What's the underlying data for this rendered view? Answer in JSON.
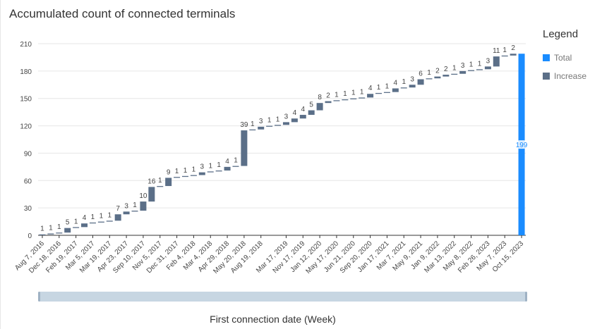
{
  "chart_data": {
    "type": "bar",
    "title": "Accumulated count of connected terminals",
    "xlabel": "First connection date (Week)",
    "ylabel": "",
    "ylim": [
      0,
      210
    ],
    "yticks": [
      0,
      30,
      60,
      90,
      120,
      150,
      180,
      210
    ],
    "grid": true,
    "legend_title": "Legend",
    "legend_position": "right",
    "tick_labels": [
      "Aug 7, 2016",
      "Dec 18, 2016",
      "Feb 19, 2017",
      "Mar 5, 2017",
      "Mar 19, 2017",
      "Apr 23, 2017",
      "Sep 10, 2017",
      "Nov 5, 2017",
      "Dec 31, 2017",
      "Feb 4, 2018",
      "Mar 4, 2018",
      "Apr 29, 2018",
      "May 20, 2018",
      "Aug 19, 2018",
      "Mar 17, 2019",
      "Nov 17, 2019",
      "Jan 12, 2020",
      "May 17, 2020",
      "Jun 21, 2020",
      "Sep 20, 2020",
      "Jan 17, 2021",
      "Mar 7, 2021",
      "May 9, 2021",
      "Jan 9, 2022",
      "Mar 13, 2022",
      "May 8, 2022",
      "Feb 26, 2023",
      "May 7, 2023",
      "Oct 15, 2023"
    ],
    "series": [
      {
        "name": "Increase",
        "color": "#5b6f88",
        "values": [
          1,
          1,
          1,
          5,
          1,
          4,
          1,
          1,
          1,
          7,
          3,
          1,
          10,
          16,
          1,
          9,
          1,
          1,
          1,
          3,
          1,
          1,
          4,
          1,
          39,
          1,
          3,
          1,
          1,
          3,
          4,
          4,
          5,
          8,
          2,
          1,
          1,
          1,
          1,
          4,
          1,
          1,
          4,
          1,
          3,
          6,
          1,
          2,
          2,
          1,
          3,
          1,
          1,
          3,
          11,
          1,
          2
        ]
      },
      {
        "name": "Total",
        "color": "#1a8cff",
        "values": [
          199
        ]
      }
    ]
  }
}
